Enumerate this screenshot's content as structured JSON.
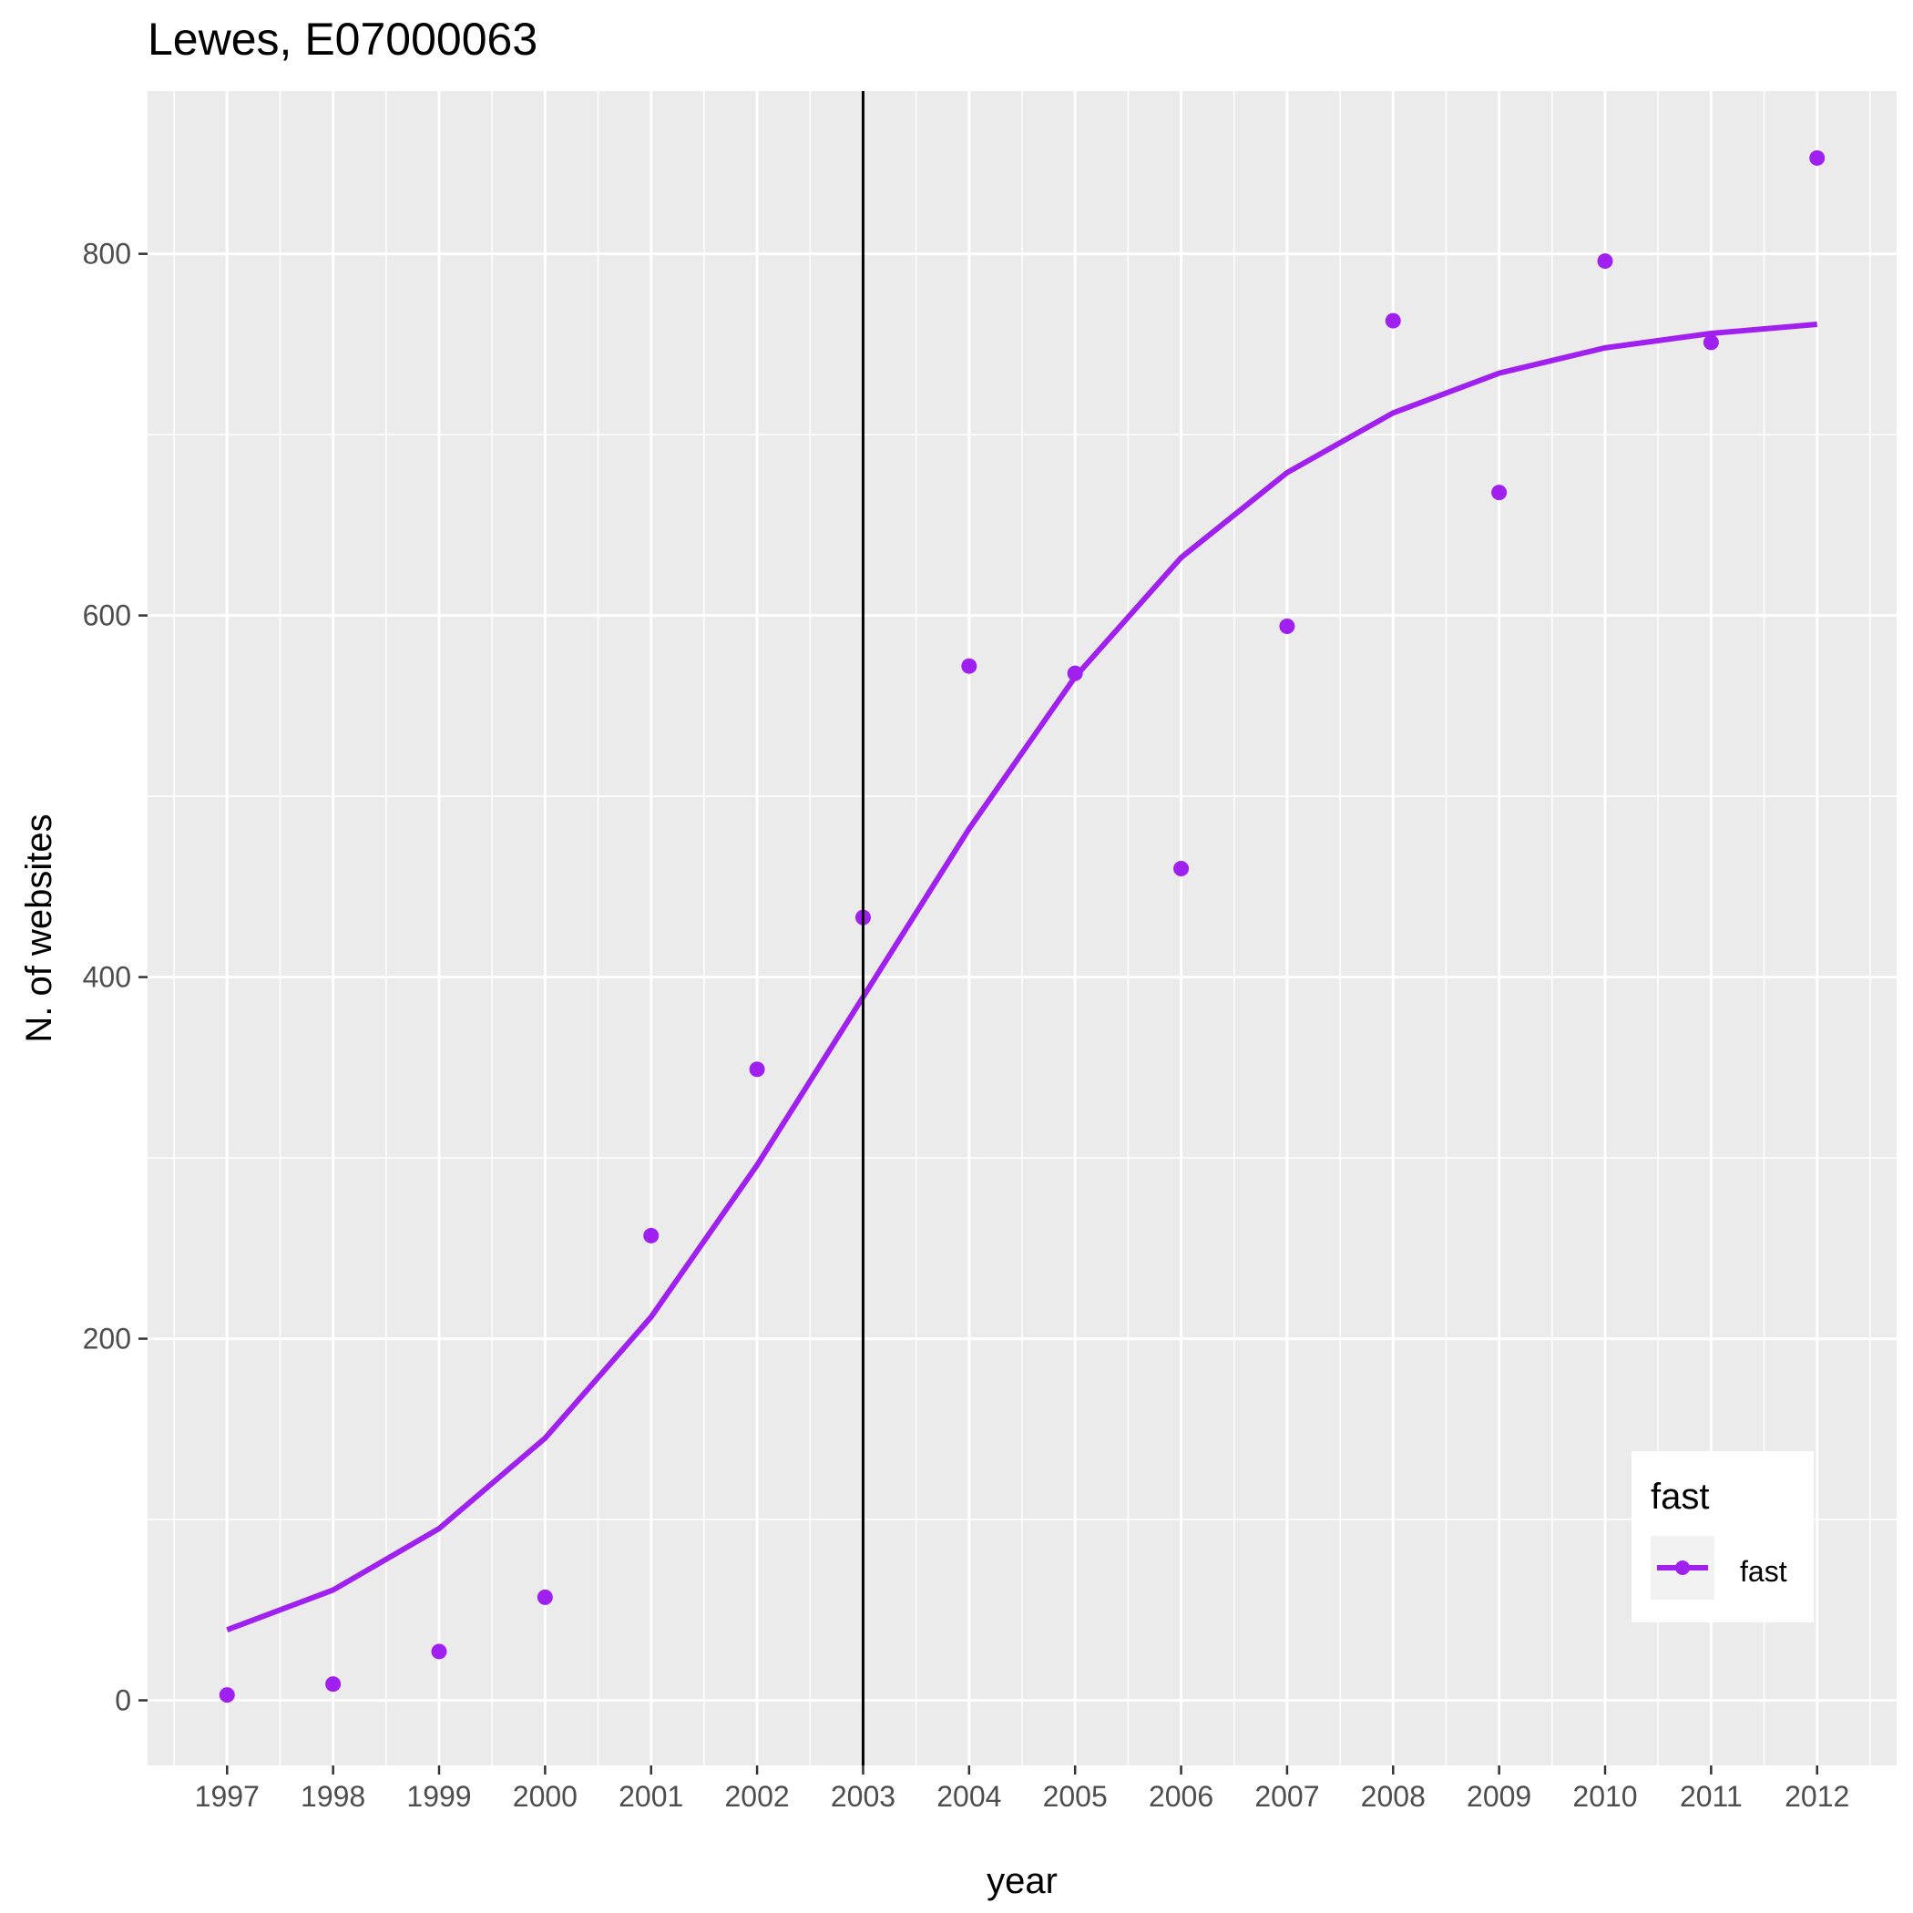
{
  "chart_data": {
    "type": "scatter",
    "title": "Lewes, E07000063",
    "xlabel": "year",
    "ylabel": "N. of websites",
    "x": [
      1997,
      1998,
      1999,
      2000,
      2001,
      2002,
      2003,
      2004,
      2005,
      2006,
      2007,
      2008,
      2009,
      2010,
      2011,
      2012
    ],
    "xticks": [
      "1997",
      "1998",
      "1999",
      "2000",
      "2001",
      "2002",
      "2003",
      "2004",
      "2005",
      "2006",
      "2007",
      "2008",
      "2009",
      "2010",
      "2011",
      "2012"
    ],
    "yticks": [
      "0",
      "200",
      "400",
      "600",
      "800"
    ],
    "xlim": [
      1996.25,
      2012.75
    ],
    "ylim": [
      -36,
      890
    ],
    "grid": true,
    "series": [
      {
        "name": "fast",
        "color": "#a020f0",
        "points": [
          3,
          9,
          27,
          57,
          257,
          349,
          433,
          572,
          568,
          460,
          594,
          763,
          668,
          796,
          751,
          853
        ],
        "trend": [
          39,
          61,
          95,
          145,
          212,
          296,
          389,
          482,
          566,
          632,
          679,
          712,
          734,
          748,
          756,
          761
        ]
      }
    ],
    "vline": {
      "x": 2003,
      "color": "#000000"
    },
    "legend": {
      "title": "fast",
      "position": "bottom-right",
      "entries": [
        "fast"
      ]
    }
  }
}
